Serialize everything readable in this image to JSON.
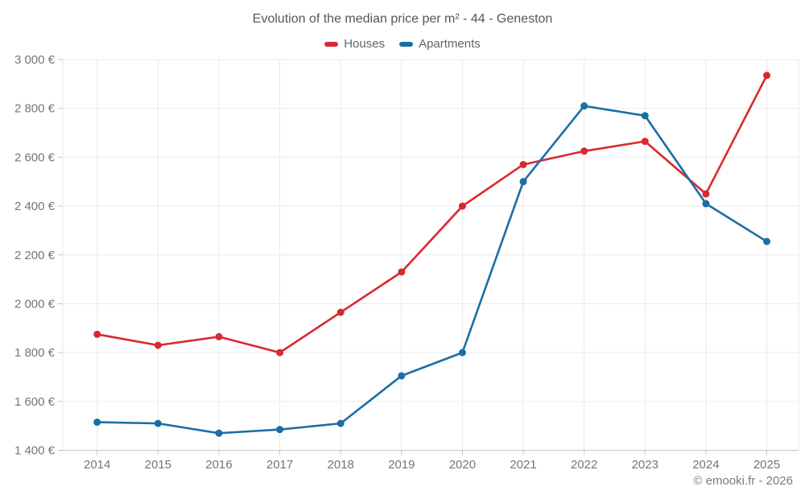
{
  "title": "Evolution of the median price per m² - 44 - Geneston",
  "footer": "© emooki.fr - 2026",
  "colors": {
    "houses": "#d9292e",
    "apartments": "#1b6ea5",
    "gridline": "#e9e9e9",
    "axis": "#c6c6c6",
    "tick_label": "#757575",
    "title_text": "#575757",
    "background": "#ffffff"
  },
  "chart_data": {
    "type": "line",
    "title": "Evolution of the median price per m² - 44 - Geneston",
    "x": [
      "2014",
      "2015",
      "2016",
      "2017",
      "2018",
      "2019",
      "2020",
      "2021",
      "2022",
      "2023",
      "2024",
      "2025"
    ],
    "series": [
      {
        "name": "Houses",
        "color": "#d9292e",
        "values": [
          1875,
          1830,
          1865,
          1800,
          1965,
          2130,
          2400,
          2570,
          2625,
          2665,
          2450,
          2935
        ]
      },
      {
        "name": "Apartments",
        "color": "#1b6ea5",
        "values": [
          1515,
          1510,
          1470,
          1485,
          1510,
          1705,
          1800,
          2500,
          2810,
          2770,
          2410,
          2255
        ]
      }
    ],
    "ylabel": "",
    "xlabel": "",
    "ylim": [
      1400,
      3000
    ],
    "ytick_step": 200,
    "yticklabels": [
      "1 400 €",
      "1 600 €",
      "1 800 €",
      "2 000 €",
      "2 200 €",
      "2 400 €",
      "2 600 €",
      "2 800 €",
      "3 000 €"
    ],
    "grid": true,
    "legend_position": "top",
    "currency_suffix": " €"
  }
}
